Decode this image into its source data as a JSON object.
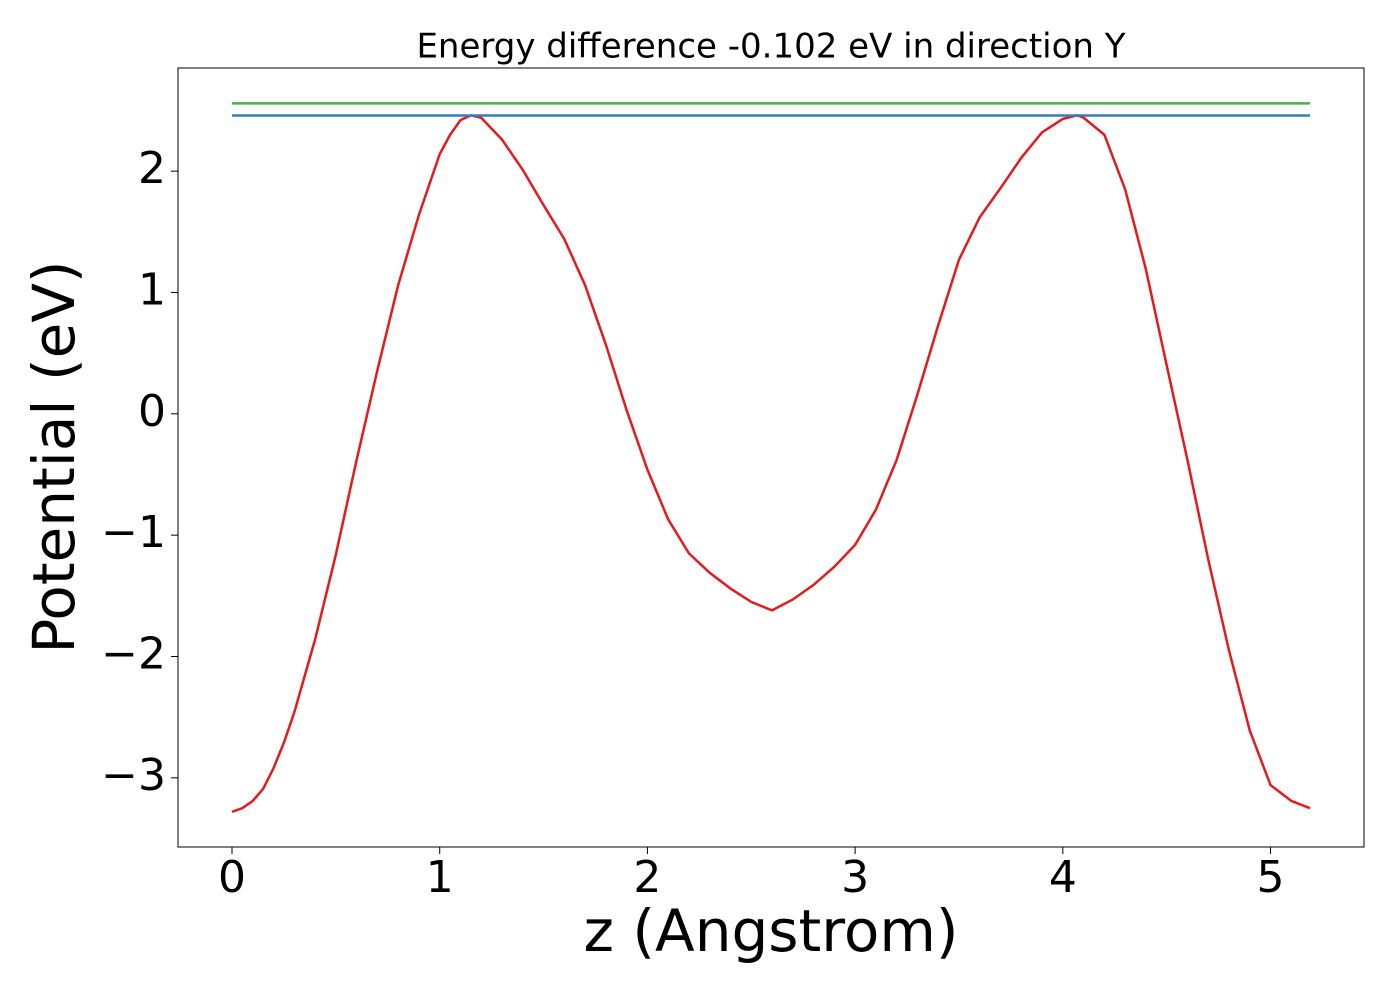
{
  "chart_data": {
    "type": "line",
    "title": "Energy difference -0.102 eV in direction Y",
    "x_label": "z (Angstrom)",
    "y_label": "Potential (eV)",
    "xlim": [
      -0.26,
      5.45
    ],
    "ylim": [
      -3.57,
      2.85
    ],
    "xticks": [
      0,
      1,
      2,
      3,
      4,
      5
    ],
    "yticks": [
      {
        "value": -3,
        "label": "−3"
      },
      {
        "value": -2,
        "label": "−2"
      },
      {
        "value": -1,
        "label": "−1"
      },
      0,
      1,
      2
    ],
    "grid": false,
    "series": [
      {
        "color": "#e41a1c",
        "x": [
          0,
          0.05,
          0.1,
          0.15,
          0.2,
          0.25,
          0.3,
          0.4,
          0.5,
          0.6,
          0.7,
          0.8,
          0.9,
          1.0,
          1.05,
          1.1,
          1.15,
          1.2,
          1.3,
          1.4,
          1.5,
          1.6,
          1.7,
          1.8,
          1.9,
          2.0,
          2.1,
          2.2,
          2.3,
          2.4,
          2.5,
          2.6,
          2.7,
          2.8,
          2.9,
          3.0,
          3.1,
          3.2,
          3.3,
          3.4,
          3.5,
          3.6,
          3.7,
          3.8,
          3.9,
          4.0,
          4.07,
          4.1,
          4.2,
          4.3,
          4.4,
          4.5,
          4.6,
          4.7,
          4.8,
          4.9,
          5.0,
          5.1,
          5.19
        ],
        "values": [
          -3.28,
          -3.25,
          -3.19,
          -3.09,
          -2.92,
          -2.71,
          -2.46,
          -1.86,
          -1.16,
          -0.38,
          0.36,
          1.06,
          1.64,
          2.14,
          2.3,
          2.42,
          2.46,
          2.44,
          2.26,
          2.01,
          1.72,
          1.44,
          1.06,
          0.57,
          0.03,
          -0.46,
          -0.87,
          -1.15,
          -1.31,
          -1.44,
          -1.55,
          -1.62,
          -1.53,
          -1.41,
          -1.26,
          -1.08,
          -0.79,
          -0.38,
          0.16,
          0.73,
          1.27,
          1.62,
          1.86,
          2.11,
          2.32,
          2.43,
          2.46,
          2.44,
          2.3,
          1.85,
          1.19,
          0.4,
          -0.38,
          -1.2,
          -1.95,
          -2.61,
          -3.06,
          -3.19,
          -3.25
        ]
      },
      {
        "color": "#377eb8",
        "x": [
          0,
          5.19
        ],
        "values": [
          2.459,
          2.459
        ]
      },
      {
        "color": "#4daf4a",
        "x": [
          0,
          5.19
        ],
        "values": [
          2.558,
          2.558
        ]
      }
    ]
  }
}
